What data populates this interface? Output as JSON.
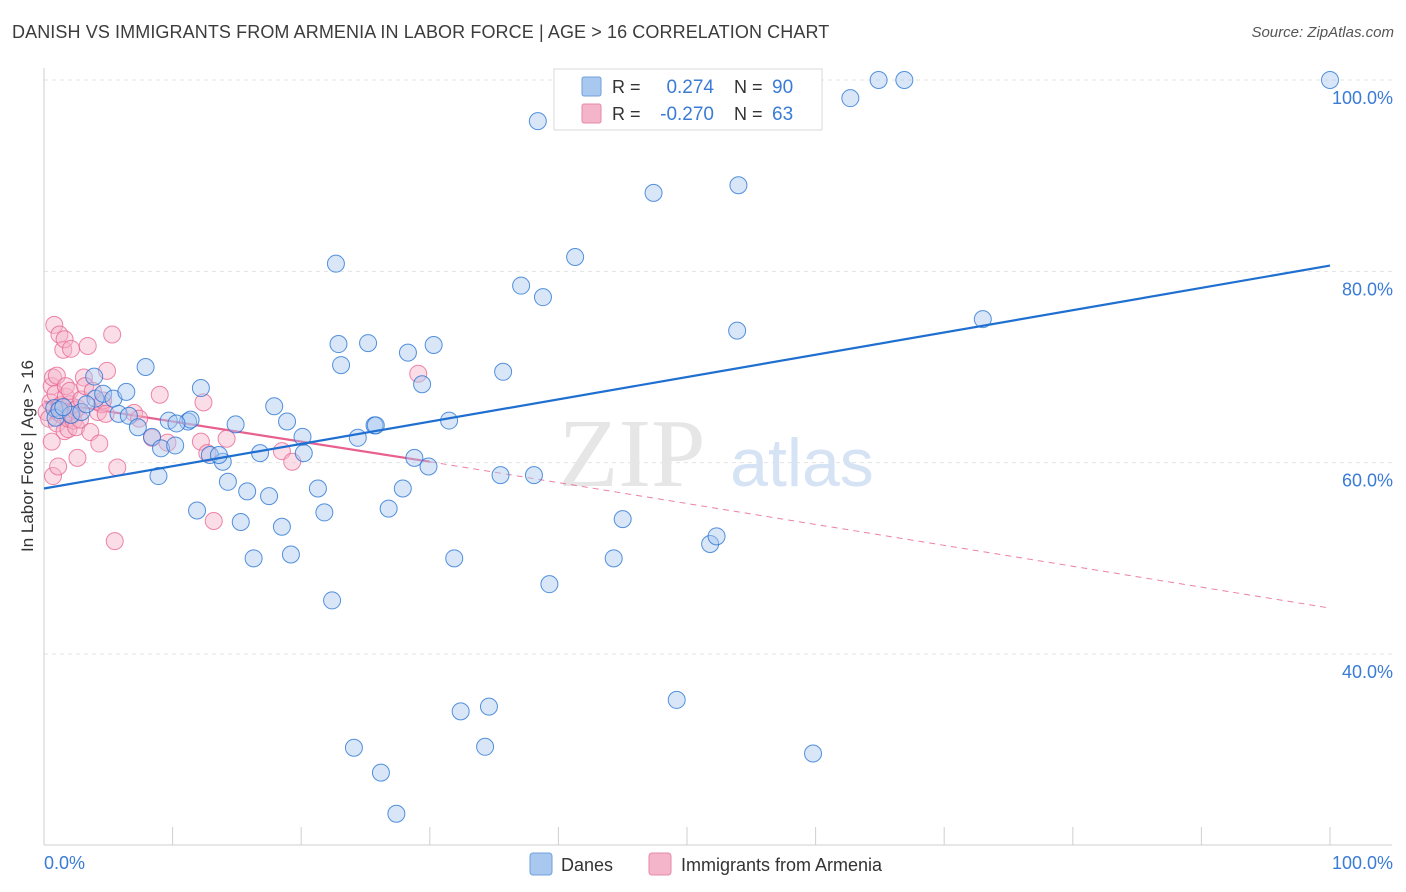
{
  "title": "DANISH VS IMMIGRANTS FROM ARMENIA IN LABOR FORCE | AGE > 16 CORRELATION CHART",
  "source": "Source: ZipAtlas.com",
  "watermark": {
    "zip": "ZIP",
    "atlas": "atlas"
  },
  "colors": {
    "danes": "#1f6fd1",
    "danes_fill": "#a9c8f0",
    "armenia": "#e8608f",
    "armenia_fill": "#f4b4c9",
    "value_text": "#3a7bd5",
    "axis_text": "#3a7bd5"
  },
  "legend_box": {
    "rows": [
      {
        "r_label": "R =",
        "r_value": "0.274",
        "n_label": "N =",
        "n_value": "90"
      },
      {
        "r_label": "R =",
        "r_value": "-0.270",
        "n_label": "N =",
        "n_value": "63"
      }
    ]
  },
  "chart_data": {
    "type": "scatter",
    "title": "DANISH VS IMMIGRANTS FROM ARMENIA IN LABOR FORCE | AGE > 16 CORRELATION CHART",
    "xlabel": "",
    "ylabel": "In Labor Force | Age > 16",
    "xlim": [
      0,
      100
    ],
    "ylim": [
      20,
      102
    ],
    "x_tick_labels": [
      "0.0%",
      "100.0%"
    ],
    "y_ticks": [
      40,
      60,
      80,
      100
    ],
    "y_tick_labels": [
      "40.0%",
      "60.0%",
      "80.0%",
      "100.0%"
    ],
    "grid": true,
    "legend_position": "bottom-center",
    "series": [
      {
        "name": "Danes",
        "r": 0.274,
        "n": 90,
        "trend": {
          "x": [
            0,
            100
          ],
          "y": [
            57.3,
            80.6
          ],
          "style": "solid"
        },
        "points": [
          [
            0.8,
            65.7
          ],
          [
            0.9,
            64.7
          ],
          [
            1.2,
            65.5
          ],
          [
            2.1,
            65.0
          ],
          [
            2.9,
            65.3
          ],
          [
            4.0,
            66.7
          ],
          [
            3.9,
            69.0
          ],
          [
            4.6,
            67.2
          ],
          [
            5.4,
            66.7
          ],
          [
            5.8,
            65.1
          ],
          [
            6.6,
            64.9
          ],
          [
            7.3,
            63.7
          ],
          [
            7.9,
            70.0
          ],
          [
            8.4,
            62.7
          ],
          [
            8.9,
            58.6
          ],
          [
            9.1,
            61.5
          ],
          [
            9.7,
            64.4
          ],
          [
            10.2,
            61.8
          ],
          [
            11.2,
            64.3
          ],
          [
            11.4,
            64.5
          ],
          [
            11.9,
            55.0
          ],
          [
            12.2,
            67.8
          ],
          [
            12.9,
            60.8
          ],
          [
            13.9,
            60.1
          ],
          [
            14.3,
            58.0
          ],
          [
            14.9,
            64.0
          ],
          [
            15.3,
            53.8
          ],
          [
            15.8,
            57.0
          ],
          [
            16.3,
            50.0
          ],
          [
            16.8,
            61.0
          ],
          [
            17.5,
            56.5
          ],
          [
            17.9,
            65.9
          ],
          [
            18.5,
            53.3
          ],
          [
            18.9,
            64.3
          ],
          [
            19.2,
            50.4
          ],
          [
            20.1,
            62.7
          ],
          [
            20.2,
            61.0
          ],
          [
            21.3,
            57.3
          ],
          [
            21.8,
            54.8
          ],
          [
            22.4,
            45.6
          ],
          [
            22.7,
            80.8
          ],
          [
            22.9,
            72.4
          ],
          [
            23.1,
            70.2
          ],
          [
            24.4,
            62.6
          ],
          [
            25.2,
            72.5
          ],
          [
            25.7,
            63.9
          ],
          [
            25.8,
            63.9
          ],
          [
            26.8,
            55.2
          ],
          [
            27.9,
            57.3
          ],
          [
            28.3,
            71.5
          ],
          [
            28.8,
            60.5
          ],
          [
            29.4,
            68.2
          ],
          [
            29.9,
            59.6
          ],
          [
            30.3,
            72.3
          ],
          [
            31.5,
            64.4
          ],
          [
            31.9,
            50.0
          ],
          [
            32.4,
            34.0
          ],
          [
            34.3,
            30.3
          ],
          [
            34.6,
            34.5
          ],
          [
            35.5,
            58.7
          ],
          [
            35.7,
            69.5
          ],
          [
            37.1,
            78.5
          ],
          [
            38.1,
            58.7
          ],
          [
            38.4,
            95.7
          ],
          [
            38.8,
            77.3
          ],
          [
            39.3,
            47.3
          ],
          [
            41.3,
            81.5
          ],
          [
            43.1,
            100.0
          ],
          [
            44.3,
            50.0
          ],
          [
            45.0,
            54.1
          ],
          [
            47.4,
            88.2
          ],
          [
            49.2,
            35.2
          ],
          [
            51.8,
            51.5
          ],
          [
            52.3,
            52.3
          ],
          [
            53.9,
            73.8
          ],
          [
            54.0,
            89.0
          ],
          [
            59.8,
            29.6
          ],
          [
            62.7,
            98.1
          ],
          [
            64.9,
            100.0
          ],
          [
            66.9,
            100.0
          ],
          [
            73.0,
            75.0
          ],
          [
            100.0,
            100.0
          ],
          [
            24.1,
            30.2
          ],
          [
            26.2,
            27.6
          ],
          [
            27.4,
            23.3
          ],
          [
            1.5,
            65.8
          ],
          [
            3.3,
            66.1
          ],
          [
            6.4,
            67.4
          ],
          [
            10.3,
            64.1
          ],
          [
            13.6,
            60.8
          ]
        ]
      },
      {
        "name": "Immigrants from Armenia",
        "r": -0.27,
        "n": 63,
        "trend_solid": {
          "x": [
            0,
            30
          ],
          "y": [
            66.4,
            60.1
          ]
        },
        "trend_dashed": {
          "x": [
            30,
            100
          ],
          "y": [
            60.1,
            44.8
          ]
        },
        "points": [
          [
            0.2,
            65.3
          ],
          [
            0.4,
            64.6
          ],
          [
            0.5,
            66.3
          ],
          [
            0.6,
            68.0
          ],
          [
            0.6,
            62.2
          ],
          [
            0.7,
            58.6
          ],
          [
            0.7,
            68.9
          ],
          [
            0.8,
            74.4
          ],
          [
            0.9,
            67.2
          ],
          [
            1.0,
            64.1
          ],
          [
            1.0,
            69.1
          ],
          [
            1.1,
            59.6
          ],
          [
            1.1,
            65.3
          ],
          [
            1.2,
            65.8
          ],
          [
            1.2,
            73.4
          ],
          [
            1.3,
            66.0
          ],
          [
            1.4,
            65.0
          ],
          [
            1.5,
            71.8
          ],
          [
            1.6,
            72.9
          ],
          [
            1.6,
            63.3
          ],
          [
            1.7,
            66.9
          ],
          [
            1.7,
            68.0
          ],
          [
            1.8,
            65.3
          ],
          [
            1.9,
            63.5
          ],
          [
            1.9,
            64.6
          ],
          [
            2.0,
            66.1
          ],
          [
            2.0,
            67.5
          ],
          [
            2.1,
            71.9
          ],
          [
            2.2,
            65.0
          ],
          [
            2.3,
            64.4
          ],
          [
            2.4,
            65.5
          ],
          [
            2.5,
            63.7
          ],
          [
            2.6,
            60.5
          ],
          [
            2.6,
            65.7
          ],
          [
            2.8,
            64.5
          ],
          [
            2.9,
            66.6
          ],
          [
            3.1,
            68.9
          ],
          [
            3.2,
            68.0
          ],
          [
            3.4,
            72.2
          ],
          [
            3.6,
            63.2
          ],
          [
            3.8,
            67.5
          ],
          [
            4.2,
            65.3
          ],
          [
            4.3,
            62.0
          ],
          [
            4.5,
            66.1
          ],
          [
            4.6,
            66.5
          ],
          [
            4.8,
            65.1
          ],
          [
            4.9,
            69.6
          ],
          [
            5.3,
            73.4
          ],
          [
            5.5,
            51.8
          ],
          [
            5.7,
            59.5
          ],
          [
            7.0,
            65.2
          ],
          [
            8.4,
            62.6
          ],
          [
            9.0,
            67.1
          ],
          [
            9.6,
            62.1
          ],
          [
            12.2,
            62.2
          ],
          [
            12.7,
            61.0
          ],
          [
            13.2,
            53.9
          ],
          [
            14.2,
            62.5
          ],
          [
            18.5,
            61.2
          ],
          [
            19.3,
            60.1
          ],
          [
            12.4,
            66.3
          ],
          [
            29.1,
            69.3
          ],
          [
            7.4,
            64.6
          ]
        ]
      }
    ]
  }
}
